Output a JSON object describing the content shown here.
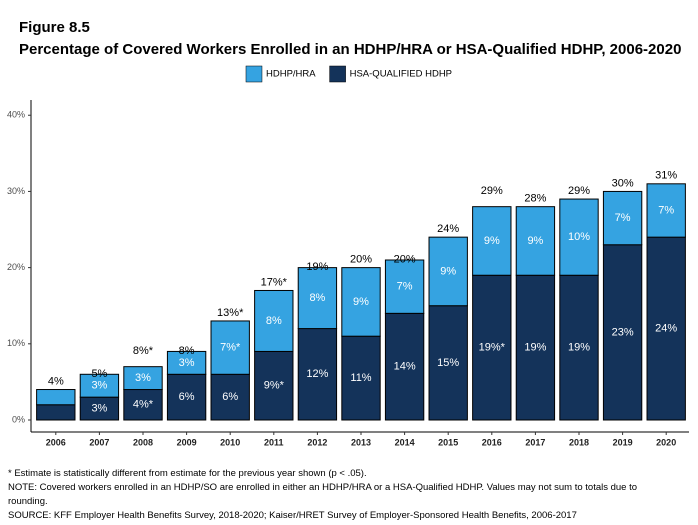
{
  "chart_data": {
    "type": "bar",
    "stacked": true,
    "title": "Figure 8.5",
    "subtitle": "Percentage of Covered Workers Enrolled in an HDHP/HRA or HSA-Qualified HDHP, 2006-2020",
    "categories": [
      "2006",
      "2007",
      "2008",
      "2009",
      "2010",
      "2011",
      "2012",
      "2013",
      "2014",
      "2015",
      "2016",
      "2017",
      "2018",
      "2019",
      "2020"
    ],
    "series": [
      {
        "name": "HSA-QUALIFIED HDHP",
        "color": "#14335a",
        "values": [
          2,
          3,
          4,
          6,
          6,
          9,
          12,
          11,
          14,
          15,
          19,
          19,
          19,
          23,
          24
        ],
        "value_labels": [
          null,
          "3%",
          "4%*",
          "6%",
          "6%",
          "9%*",
          "12%",
          "11%",
          "14%",
          "15%",
          "19%*",
          "19%",
          "19%",
          "23%",
          "24%"
        ]
      },
      {
        "name": "HDHP/HRA",
        "color": "#35a3e1",
        "values": [
          2,
          3,
          3,
          3,
          7,
          8,
          8,
          9,
          7,
          9,
          9,
          9,
          10,
          7,
          7
        ],
        "value_labels": [
          null,
          "3%",
          "3%",
          "3%",
          "7%*",
          "8%",
          "8%",
          "9%",
          "7%",
          "9%",
          "9%",
          "9%",
          "10%",
          "7%",
          "7%"
        ]
      }
    ],
    "totals": {
      "values": [
        4,
        5,
        8,
        8,
        13,
        17,
        19,
        20,
        20,
        24,
        29,
        28,
        29,
        30,
        31
      ],
      "value_labels": [
        "4%",
        "5%",
        "8%*",
        "8%",
        "13%*",
        "17%*",
        "19%",
        "20%",
        "20%",
        "24%",
        "29%",
        "28%",
        "29%",
        "30%",
        "31%"
      ]
    },
    "legend_order": [
      1,
      0
    ],
    "ylim": [
      0,
      42
    ],
    "yticks": [
      {
        "value": 0,
        "label": "0%"
      },
      {
        "value": 10,
        "label": "10%"
      },
      {
        "value": 20,
        "label": "20%"
      },
      {
        "value": 30,
        "label": "30%"
      },
      {
        "value": 40,
        "label": "40%"
      }
    ],
    "grid": false,
    "notes": [
      "* Estimate is statistically different from estimate for the previous year shown (p < .05).",
      "NOTE: Covered workers enrolled in an HDHP/SO are enrolled in either an HDHP/HRA or a HSA-Qualified HDHP. Values may not sum to totals due to rounding.",
      "SOURCE: KFF Employer Health Benefits Survey, 2018-2020; Kaiser/HRET Survey of Employer-Sponsored Health Benefits, 2006-2017"
    ]
  }
}
